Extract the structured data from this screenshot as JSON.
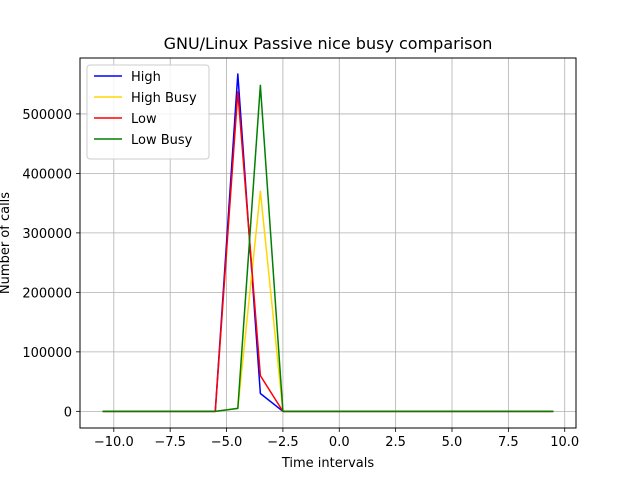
{
  "chart_data": {
    "type": "line",
    "title": "GNU/Linux Passive nice busy comparison",
    "xlabel": "Time intervals",
    "ylabel": "Number of calls",
    "xlim": [
      -11.5,
      10.5
    ],
    "ylim": [
      -28000,
      594000
    ],
    "xticks": [
      -10.0,
      -7.5,
      -5.0,
      -2.5,
      0.0,
      2.5,
      5.0,
      7.5,
      10.0
    ],
    "xtick_labels": [
      "−10.0",
      "−7.5",
      "−5.0",
      "−2.5",
      "0.0",
      "2.5",
      "5.0",
      "7.5",
      "10.0"
    ],
    "yticks": [
      0,
      100000,
      200000,
      300000,
      400000,
      500000
    ],
    "ytick_labels": [
      "0",
      "100000",
      "200000",
      "300000",
      "400000",
      "500000"
    ],
    "grid": true,
    "legend_position": "top-left",
    "series": [
      {
        "name": "High",
        "color": "#0000ff",
        "x": [
          -10.5,
          -9.5,
          -8.5,
          -7.5,
          -6.5,
          -5.5,
          -4.5,
          -3.5,
          -2.5,
          -1.5,
          -0.5,
          0.5,
          1.5,
          2.5,
          3.5,
          4.5,
          5.5,
          6.5,
          7.5,
          8.5,
          9.5
        ],
        "y": [
          0,
          0,
          0,
          0,
          0,
          0,
          567000,
          30000,
          0,
          0,
          0,
          0,
          0,
          0,
          0,
          0,
          0,
          0,
          0,
          0,
          0
        ]
      },
      {
        "name": "High Busy",
        "color": "#ffd700",
        "x": [
          -10.5,
          -9.5,
          -8.5,
          -7.5,
          -6.5,
          -5.5,
          -4.5,
          -3.5,
          -2.5,
          -1.5,
          -0.5,
          0.5,
          1.5,
          2.5,
          3.5,
          4.5,
          5.5,
          6.5,
          7.5,
          8.5,
          9.5
        ],
        "y": [
          0,
          0,
          0,
          0,
          0,
          0,
          5000,
          370000,
          0,
          0,
          0,
          0,
          0,
          0,
          0,
          0,
          0,
          0,
          0,
          0,
          0
        ]
      },
      {
        "name": "Low",
        "color": "#ff0000",
        "x": [
          -10.5,
          -9.5,
          -8.5,
          -7.5,
          -6.5,
          -5.5,
          -4.5,
          -3.5,
          -2.5,
          -1.5,
          -0.5,
          0.5,
          1.5,
          2.5,
          3.5,
          4.5,
          5.5,
          6.5,
          7.5,
          8.5,
          9.5
        ],
        "y": [
          0,
          0,
          0,
          0,
          0,
          0,
          537000,
          60000,
          0,
          0,
          0,
          0,
          0,
          0,
          0,
          0,
          0,
          0,
          0,
          0,
          0
        ]
      },
      {
        "name": "Low Busy",
        "color": "#008000",
        "x": [
          -10.5,
          -9.5,
          -8.5,
          -7.5,
          -6.5,
          -5.5,
          -4.5,
          -3.5,
          -2.5,
          -1.5,
          -0.5,
          0.5,
          1.5,
          2.5,
          3.5,
          4.5,
          5.5,
          6.5,
          7.5,
          8.5,
          9.5
        ],
        "y": [
          0,
          0,
          0,
          0,
          0,
          0,
          5000,
          548000,
          0,
          0,
          0,
          0,
          0,
          0,
          0,
          0,
          0,
          0,
          0,
          0,
          0
        ]
      }
    ]
  }
}
